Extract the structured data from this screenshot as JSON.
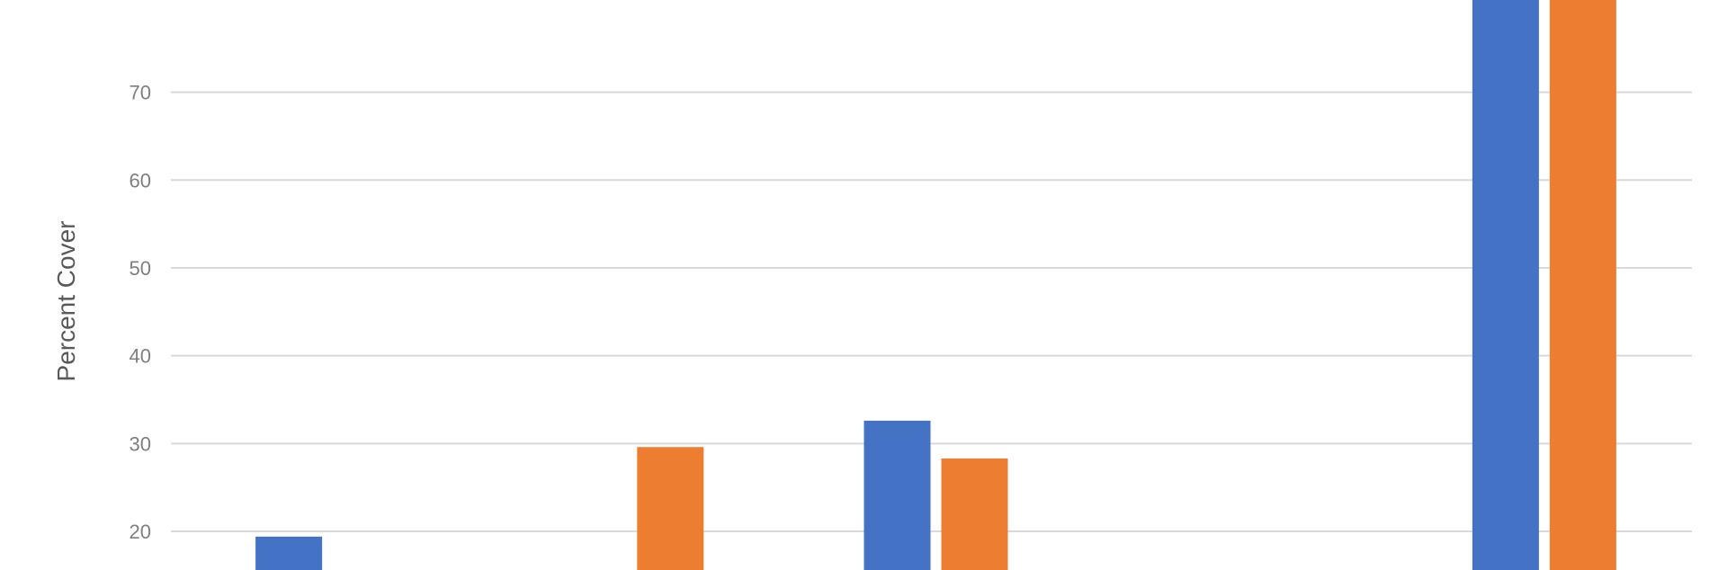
{
  "chart_data": {
    "type": "bar",
    "ylabel": "Percent Cover",
    "xlabel": "",
    "ylim": [
      15.6,
      80.5
    ],
    "yticks": [
      20,
      30,
      40,
      50,
      60,
      70
    ],
    "grid": true,
    "categories": [
      "",
      "",
      "",
      "",
      ""
    ],
    "series": [
      {
        "color": "#4472c4",
        "values": [
          19.4,
          null,
          32.6,
          null,
          80.5
        ]
      },
      {
        "color": "#ed7d31",
        "values": [
          null,
          29.6,
          28.3,
          null,
          80.5
        ]
      }
    ]
  }
}
